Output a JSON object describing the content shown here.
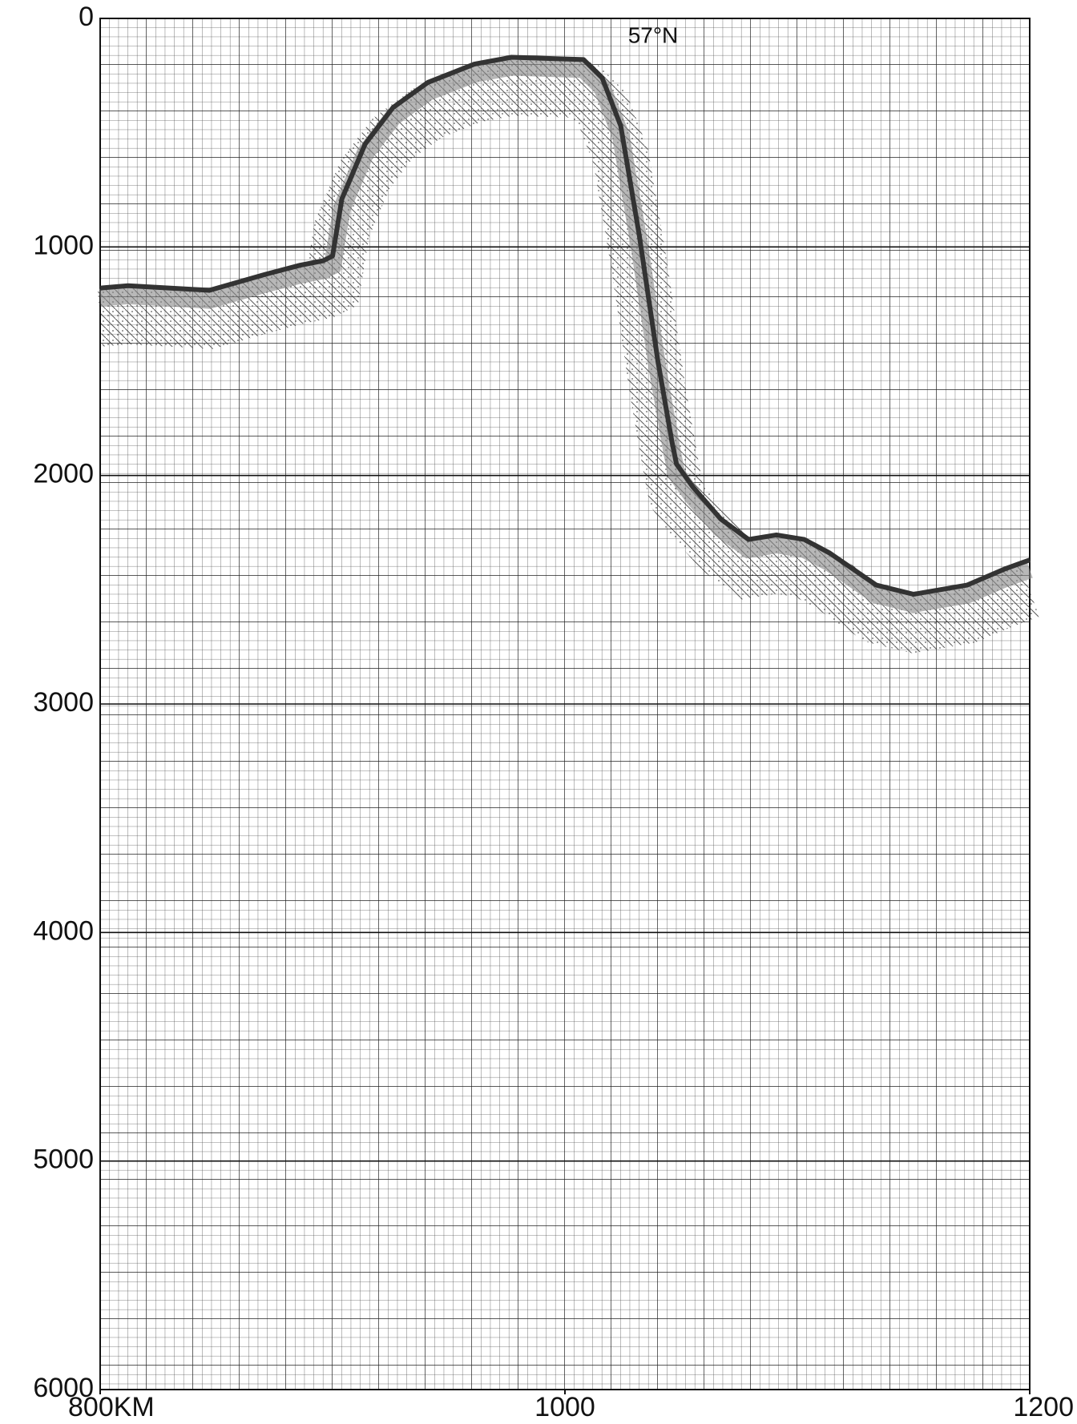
{
  "chart_data": {
    "type": "line",
    "annotation": "57°N",
    "x": [
      800,
      812,
      847,
      871,
      886,
      896,
      900,
      904,
      914,
      926,
      941,
      961,
      977,
      1008,
      1016,
      1024,
      1032,
      1040,
      1046,
      1048,
      1055,
      1067,
      1079,
      1091,
      1103,
      1114,
      1134,
      1150,
      1173,
      1189,
      1200
    ],
    "series": [
      {
        "color": "#333333",
        "values": [
          1180,
          1170,
          1190,
          1120,
          1080,
          1060,
          1040,
          790,
          550,
          390,
          280,
          200,
          170,
          180,
          260,
          470,
          950,
          1500,
          1850,
          1950,
          2050,
          2190,
          2280,
          2260,
          2280,
          2340,
          2480,
          2520,
          2480,
          2410,
          2370
        ]
      }
    ],
    "xlim": [
      800,
      1200
    ],
    "xticks": [
      {
        "value": 800,
        "label": "800KM"
      },
      1000,
      1200
    ],
    "ylim": [
      0,
      6000
    ],
    "yticks": [
      0,
      1000,
      2000,
      3000,
      4000,
      5000,
      6000
    ],
    "y_inverted": true,
    "grid": true
  }
}
